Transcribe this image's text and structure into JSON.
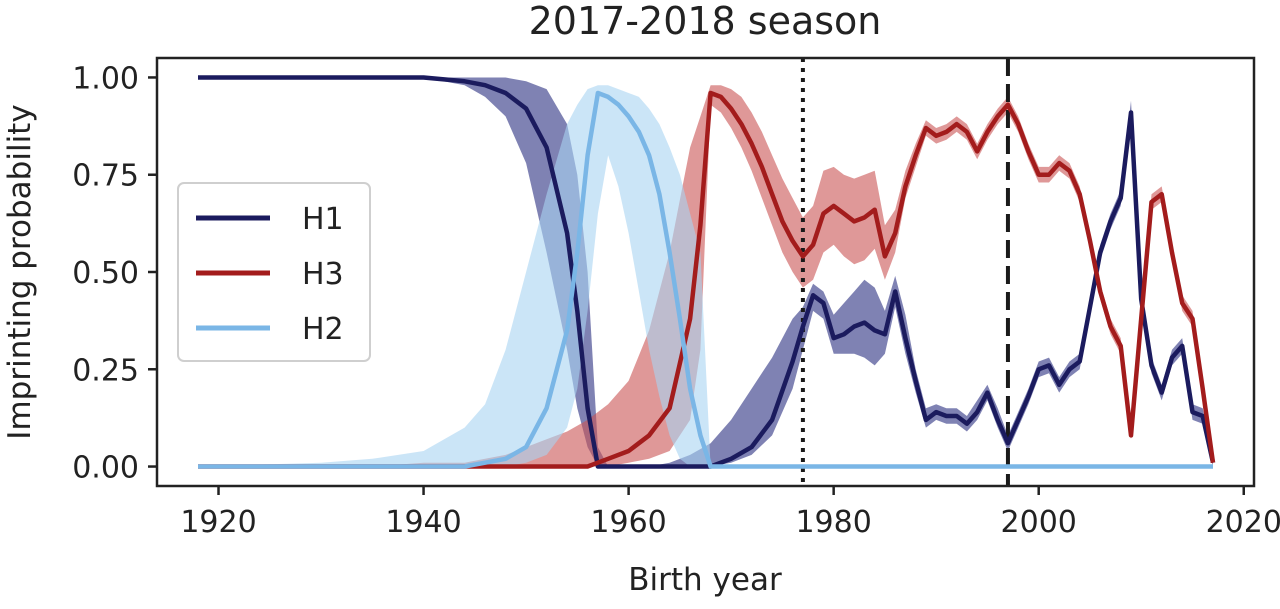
{
  "chart_data": {
    "type": "line",
    "title": "2017-2018 season",
    "xlabel": "Birth year",
    "ylabel": "Imprinting probability",
    "xlim": [
      1914,
      2021
    ],
    "ylim": [
      -0.05,
      1.05
    ],
    "xticks": [
      1920,
      1940,
      1960,
      1980,
      2000,
      2020
    ],
    "yticks": [
      0.0,
      0.25,
      0.5,
      0.75,
      1.0
    ],
    "xtick_labels": [
      "1920",
      "1940",
      "1960",
      "1980",
      "2000",
      "2020"
    ],
    "ytick_labels": [
      "0.00",
      "0.25",
      "0.50",
      "0.75",
      "1.00"
    ],
    "grid": false,
    "legend_position": "left",
    "vlines": [
      {
        "x": 1977,
        "style": "dotted"
      },
      {
        "x": 1997,
        "style": "dashed"
      }
    ],
    "series": [
      {
        "name": "H1",
        "color": "#1b1b5e",
        "band_color": "#2a2f80",
        "x": [
          1918,
          1925,
          1930,
          1935,
          1940,
          1944,
          1946,
          1948,
          1950,
          1952,
          1954,
          1955,
          1956,
          1957,
          1958,
          1960,
          1962,
          1964,
          1966,
          1968,
          1970,
          1972,
          1974,
          1976,
          1977,
          1978,
          1979,
          1980,
          1981,
          1982,
          1983,
          1984,
          1985,
          1986,
          1987,
          1988,
          1989,
          1990,
          1991,
          1992,
          1993,
          1994,
          1995,
          1996,
          1997,
          1998,
          1999,
          2000,
          2001,
          2002,
          2003,
          2004,
          2005,
          2006,
          2007,
          2008,
          2009,
          2010,
          2011,
          2012,
          2013,
          2014,
          2015,
          2016,
          2017
        ],
        "y": [
          1.0,
          1.0,
          1.0,
          1.0,
          1.0,
          0.99,
          0.98,
          0.96,
          0.92,
          0.82,
          0.6,
          0.4,
          0.15,
          0.0,
          0.0,
          0.0,
          0.0,
          0.0,
          0.0,
          0.0,
          0.02,
          0.05,
          0.12,
          0.27,
          0.36,
          0.44,
          0.42,
          0.33,
          0.34,
          0.36,
          0.37,
          0.35,
          0.34,
          0.45,
          0.33,
          0.22,
          0.12,
          0.14,
          0.13,
          0.13,
          0.11,
          0.14,
          0.19,
          0.12,
          0.06,
          0.12,
          0.18,
          0.25,
          0.26,
          0.21,
          0.25,
          0.27,
          0.41,
          0.55,
          0.63,
          0.69,
          0.91,
          0.43,
          0.26,
          0.19,
          0.28,
          0.31,
          0.14,
          0.13,
          0.01
        ],
        "lower": [
          1.0,
          1.0,
          1.0,
          1.0,
          1.0,
          0.98,
          0.95,
          0.9,
          0.78,
          0.55,
          0.3,
          0.15,
          0.05,
          0.0,
          0.0,
          0.0,
          0.0,
          0.0,
          0.0,
          0.0,
          0.01,
          0.03,
          0.08,
          0.2,
          0.3,
          0.4,
          0.38,
          0.29,
          0.29,
          0.29,
          0.28,
          0.26,
          0.29,
          0.41,
          0.29,
          0.19,
          0.1,
          0.12,
          0.11,
          0.11,
          0.09,
          0.12,
          0.17,
          0.1,
          0.04,
          0.1,
          0.16,
          0.23,
          0.24,
          0.19,
          0.23,
          0.25,
          0.39,
          0.53,
          0.61,
          0.67,
          0.88,
          0.41,
          0.24,
          0.17,
          0.26,
          0.29,
          0.12,
          0.11,
          0.0
        ],
        "upper": [
          1.0,
          1.0,
          1.0,
          1.0,
          1.0,
          1.0,
          1.0,
          1.0,
          0.99,
          0.97,
          0.88,
          0.75,
          0.5,
          0.05,
          0.0,
          0.0,
          0.0,
          0.01,
          0.03,
          0.06,
          0.12,
          0.2,
          0.28,
          0.38,
          0.41,
          0.47,
          0.45,
          0.39,
          0.42,
          0.45,
          0.48,
          0.46,
          0.4,
          0.49,
          0.39,
          0.25,
          0.15,
          0.16,
          0.15,
          0.15,
          0.13,
          0.17,
          0.21,
          0.15,
          0.08,
          0.14,
          0.2,
          0.27,
          0.28,
          0.23,
          0.27,
          0.29,
          0.43,
          0.57,
          0.65,
          0.71,
          0.94,
          0.45,
          0.28,
          0.21,
          0.3,
          0.33,
          0.16,
          0.15,
          0.02
        ]
      },
      {
        "name": "H3",
        "color": "#a31c1c",
        "band_color": "#c95454",
        "x": [
          1918,
          1925,
          1930,
          1935,
          1940,
          1944,
          1946,
          1948,
          1950,
          1952,
          1954,
          1956,
          1958,
          1960,
          1962,
          1964,
          1966,
          1967,
          1968,
          1969,
          1970,
          1971,
          1972,
          1973,
          1974,
          1975,
          1976,
          1977,
          1978,
          1979,
          1980,
          1981,
          1982,
          1983,
          1984,
          1985,
          1986,
          1987,
          1988,
          1989,
          1990,
          1991,
          1992,
          1993,
          1994,
          1995,
          1996,
          1997,
          1998,
          1999,
          2000,
          2001,
          2002,
          2003,
          2004,
          2005,
          2006,
          2007,
          2008,
          2009,
          2010,
          2011,
          2012,
          2013,
          2014,
          2015,
          2016,
          2017
        ],
        "y": [
          0.0,
          0.0,
          0.0,
          0.0,
          0.0,
          0.0,
          0.0,
          0.0,
          0.0,
          0.0,
          0.0,
          0.0,
          0.02,
          0.04,
          0.08,
          0.15,
          0.38,
          0.62,
          0.96,
          0.95,
          0.92,
          0.88,
          0.83,
          0.77,
          0.7,
          0.63,
          0.58,
          0.54,
          0.57,
          0.65,
          0.67,
          0.65,
          0.63,
          0.64,
          0.66,
          0.54,
          0.6,
          0.72,
          0.8,
          0.87,
          0.85,
          0.86,
          0.88,
          0.86,
          0.81,
          0.86,
          0.9,
          0.93,
          0.88,
          0.81,
          0.75,
          0.75,
          0.78,
          0.76,
          0.7,
          0.58,
          0.45,
          0.36,
          0.31,
          0.08,
          0.38,
          0.68,
          0.7,
          0.55,
          0.42,
          0.38,
          0.2,
          0.01
        ],
        "lower": [
          0.0,
          0.0,
          0.0,
          0.0,
          0.0,
          0.0,
          0.0,
          0.0,
          0.0,
          0.0,
          0.0,
          0.0,
          0.0,
          0.01,
          0.02,
          0.04,
          0.12,
          0.3,
          0.93,
          0.91,
          0.87,
          0.82,
          0.76,
          0.69,
          0.62,
          0.55,
          0.5,
          0.46,
          0.48,
          0.55,
          0.57,
          0.54,
          0.52,
          0.53,
          0.56,
          0.48,
          0.55,
          0.69,
          0.77,
          0.85,
          0.83,
          0.84,
          0.86,
          0.84,
          0.79,
          0.84,
          0.88,
          0.91,
          0.86,
          0.79,
          0.73,
          0.73,
          0.76,
          0.74,
          0.68,
          0.56,
          0.43,
          0.34,
          0.29,
          0.07,
          0.36,
          0.66,
          0.68,
          0.53,
          0.4,
          0.36,
          0.18,
          0.0
        ],
        "upper": [
          0.0,
          0.0,
          0.0,
          0.0,
          0.01,
          0.01,
          0.02,
          0.03,
          0.05,
          0.07,
          0.09,
          0.12,
          0.16,
          0.22,
          0.35,
          0.55,
          0.82,
          0.9,
          0.98,
          0.98,
          0.97,
          0.95,
          0.91,
          0.86,
          0.8,
          0.74,
          0.69,
          0.64,
          0.67,
          0.76,
          0.77,
          0.75,
          0.74,
          0.75,
          0.76,
          0.62,
          0.66,
          0.76,
          0.83,
          0.89,
          0.87,
          0.88,
          0.9,
          0.88,
          0.83,
          0.88,
          0.92,
          0.95,
          0.9,
          0.83,
          0.77,
          0.77,
          0.8,
          0.78,
          0.72,
          0.6,
          0.47,
          0.38,
          0.33,
          0.1,
          0.4,
          0.7,
          0.72,
          0.57,
          0.44,
          0.4,
          0.22,
          0.02
        ]
      },
      {
        "name": "H2",
        "color": "#7ab6e6",
        "band_color": "#a8d3f2",
        "x": [
          1918,
          1930,
          1935,
          1940,
          1944,
          1946,
          1948,
          1950,
          1952,
          1954,
          1955,
          1956,
          1957,
          1958,
          1959,
          1960,
          1961,
          1962,
          1963,
          1964,
          1965,
          1966,
          1967,
          1968,
          1970,
          1980,
          1990,
          2000,
          2010,
          2017
        ],
        "y": [
          0.0,
          0.0,
          0.0,
          0.0,
          0.0,
          0.01,
          0.02,
          0.05,
          0.15,
          0.35,
          0.55,
          0.8,
          0.96,
          0.95,
          0.93,
          0.9,
          0.86,
          0.8,
          0.7,
          0.55,
          0.38,
          0.2,
          0.08,
          0.0,
          0.0,
          0.0,
          0.0,
          0.0,
          0.0,
          0.0
        ],
        "lower": [
          0.0,
          0.0,
          0.0,
          0.0,
          0.0,
          0.0,
          0.0,
          0.01,
          0.03,
          0.1,
          0.2,
          0.4,
          0.65,
          0.8,
          0.72,
          0.6,
          0.45,
          0.3,
          0.18,
          0.08,
          0.02,
          0.0,
          0.0,
          0.0,
          0.0,
          0.0,
          0.0,
          0.0,
          0.0,
          0.0
        ],
        "upper": [
          0.0,
          0.01,
          0.02,
          0.04,
          0.1,
          0.16,
          0.3,
          0.5,
          0.7,
          0.88,
          0.93,
          0.97,
          0.98,
          0.98,
          0.97,
          0.96,
          0.95,
          0.92,
          0.88,
          0.82,
          0.75,
          0.65,
          0.55,
          0.0,
          0.0,
          0.0,
          0.0,
          0.0,
          0.0,
          0.0
        ]
      }
    ]
  }
}
